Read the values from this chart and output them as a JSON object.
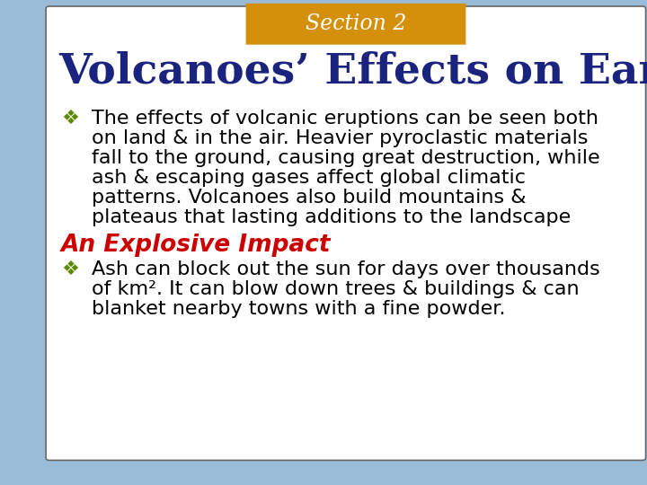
{
  "section_label": "Section 2",
  "section_bg_color": "#D4900A",
  "section_text_color": "#FFFFFF",
  "title": "Volcanoes’ Effects on Earth",
  "title_color": "#1A237E",
  "slide_bg_color": "#9BBCD6",
  "content_bg_color": "#FFFFFF",
  "bullet_symbol": "❖",
  "bullet_color": "#5A8A00",
  "bullet1_lines": [
    "The effects of volcanic eruptions can be seen both",
    "on land & in the air. Heavier pyroclastic materials",
    "fall to the ground, causing great destruction, while",
    "ash & escaping gases affect global climatic",
    "patterns. Volcanoes also build mountains &",
    "plateaus that lasting additions to the landscape"
  ],
  "subheading": "An Explosive Impact",
  "subheading_color": "#CC0000",
  "bullet2_lines": [
    "Ash can block out the sun for days over thousands",
    "of km². It can blow down trees & buildings & can",
    "blanket nearby towns with a fine powder."
  ],
  "text_color": "#000000",
  "font_size_title": 34,
  "font_size_section": 17,
  "font_size_body": 16,
  "font_size_subheading": 19,
  "font_size_bullet": 15
}
